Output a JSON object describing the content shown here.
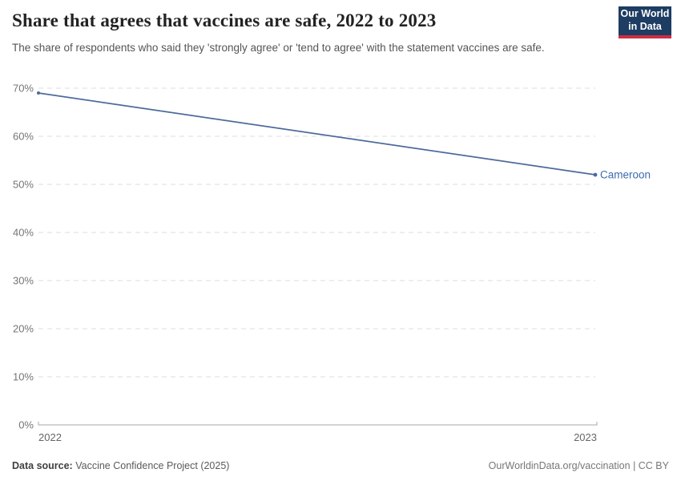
{
  "header": {
    "title": "Share that agrees that vaccines are safe, 2022 to 2023",
    "subtitle": "The share of respondents who said they 'strongly agree' or 'tend to agree' with the statement vaccines are safe.",
    "logo": {
      "line1": "Our World",
      "line2": "in Data",
      "bg_color": "#1d3d63",
      "accent_color": "#cf2e41"
    }
  },
  "chart_data": {
    "type": "line",
    "x": [
      2022,
      2023
    ],
    "x_tick_labels": [
      "2022",
      "2023"
    ],
    "series": [
      {
        "name": "Cameroon",
        "values": [
          69,
          52
        ],
        "color": "#4c6a9c"
      }
    ],
    "title": "Share that agrees that vaccines are safe, 2022 to 2023",
    "xlabel": "",
    "ylabel": "",
    "ylim": [
      0,
      70
    ],
    "ytick_step": 10,
    "ytick_suffix": "%",
    "grid": "horizontal-dashed",
    "legend_position": "end-of-line-label"
  },
  "colors": {
    "gridline": "#dedede",
    "axis": "#a7a7a7",
    "tick_label": "#757575",
    "x_label": "#666666",
    "entity_label": "#3d6cab"
  },
  "footer": {
    "source_label": "Data source:",
    "source_value": "Vaccine Confidence Project (2025)",
    "credit": "OurWorldinData.org/vaccination | CC BY"
  }
}
